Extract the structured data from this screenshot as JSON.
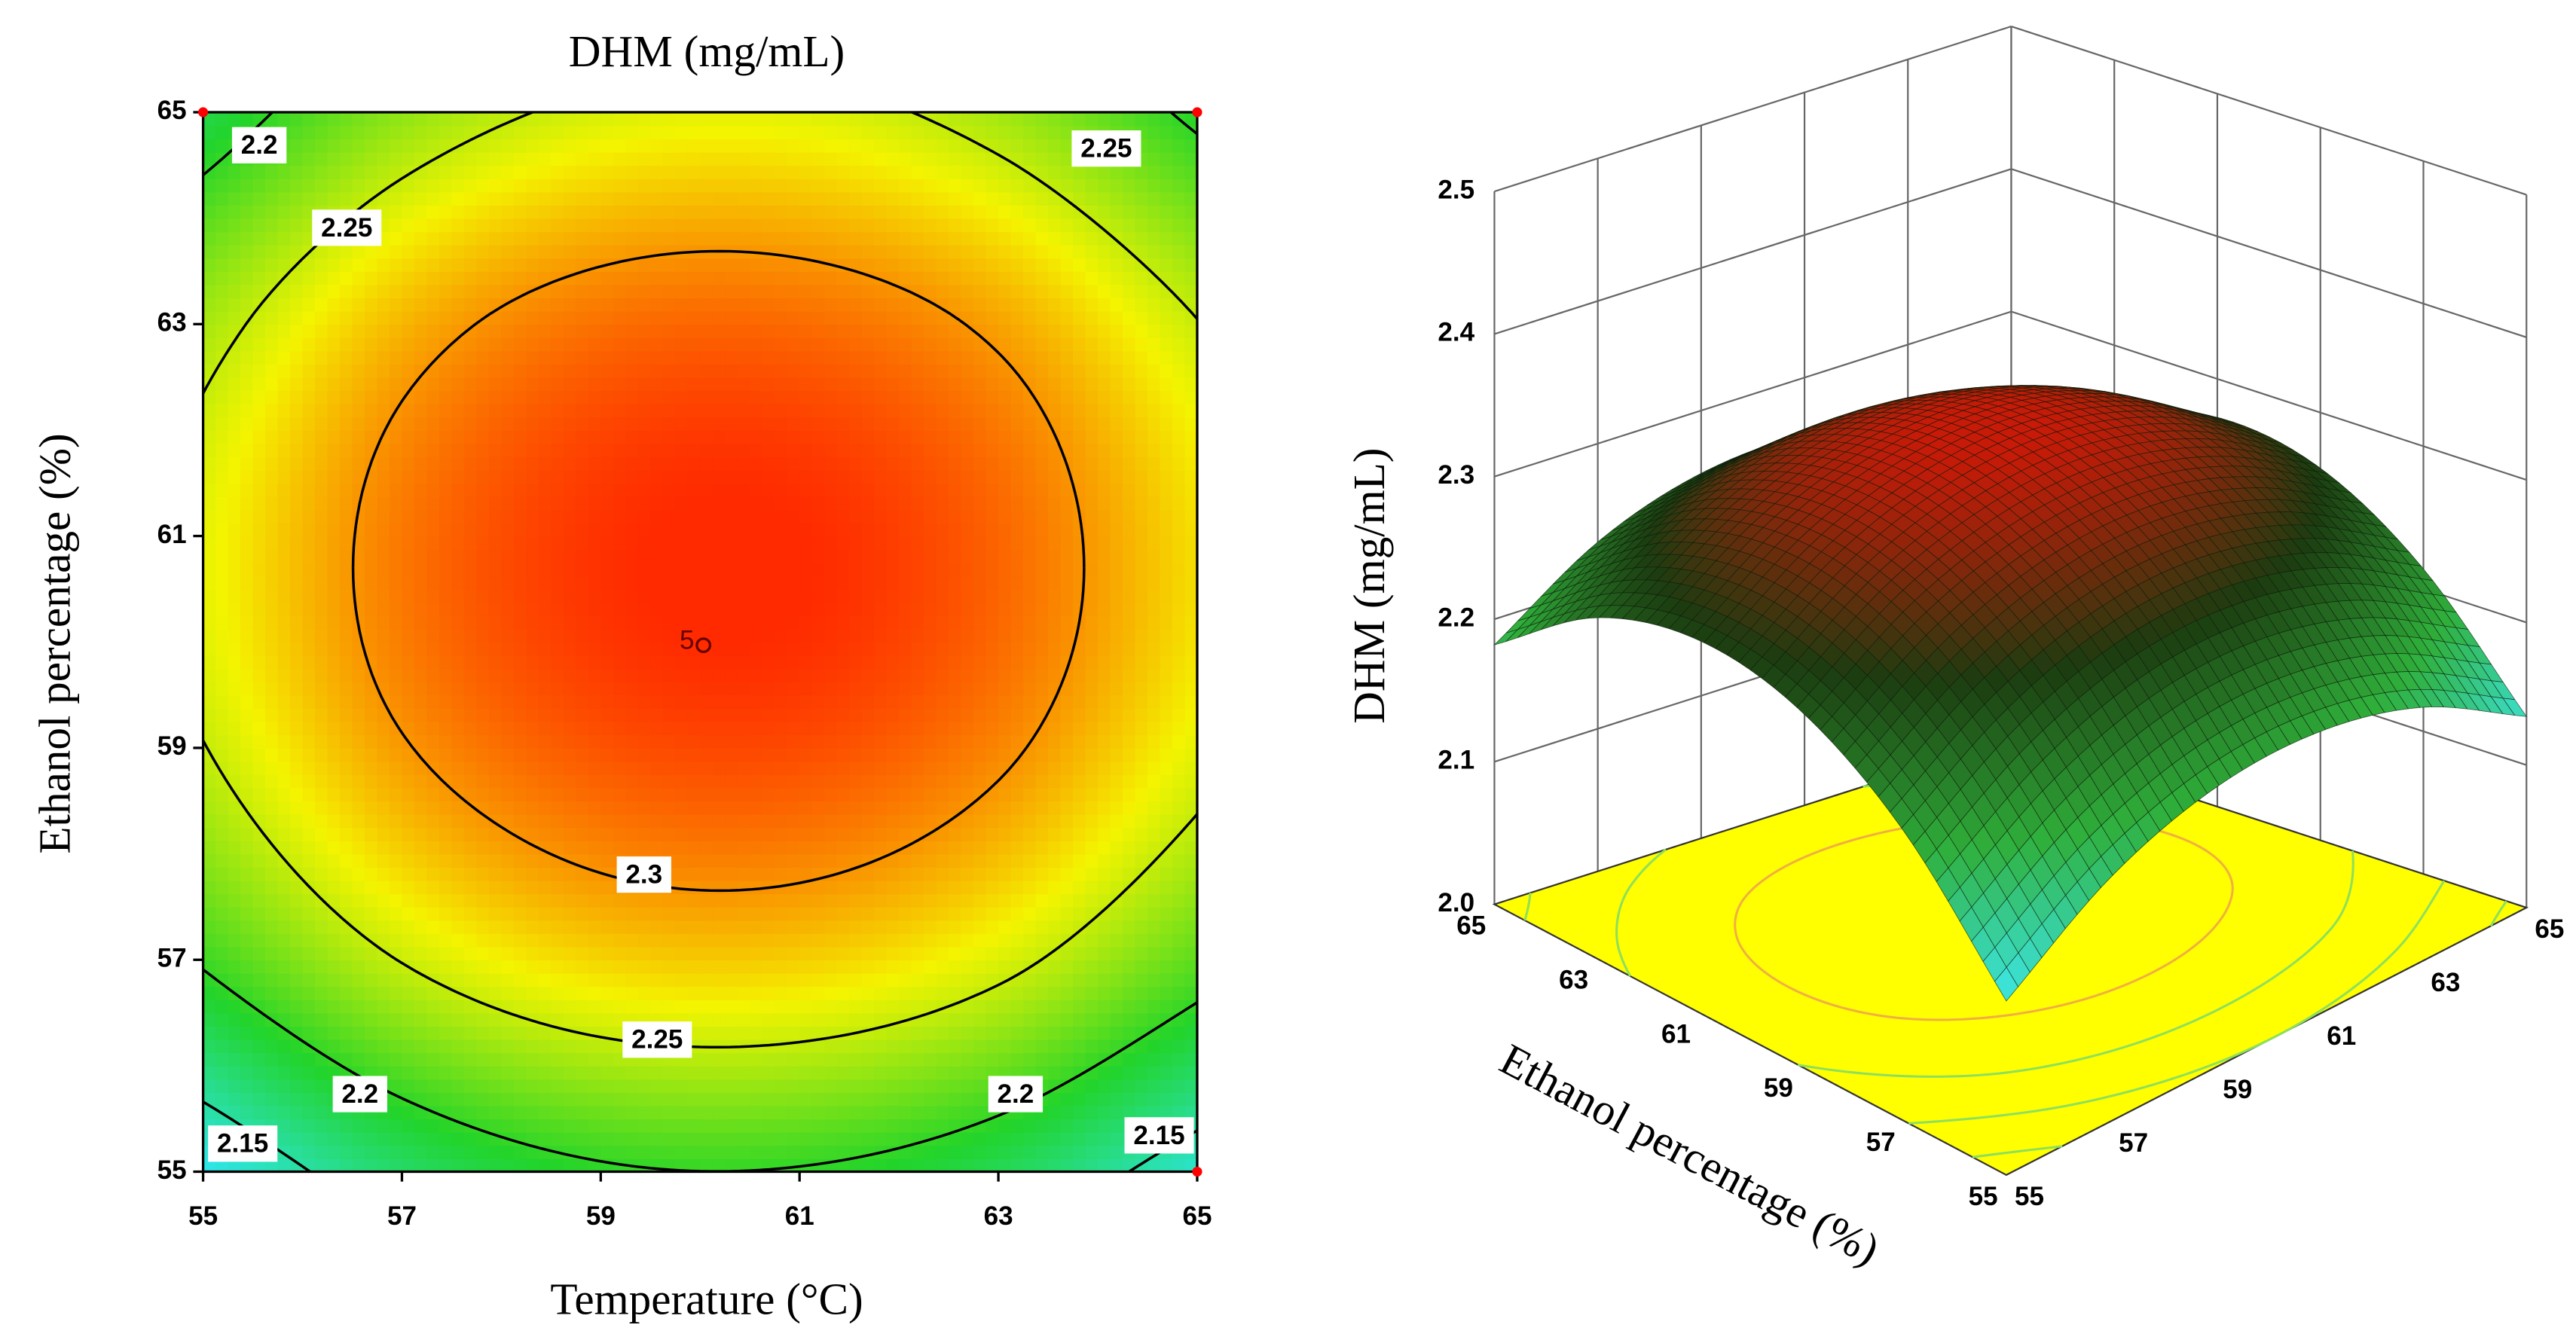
{
  "chart_data": [
    {
      "type": "contour",
      "title": "DHM (mg/mL)",
      "xlabel": "Temperature (°C)",
      "ylabel": "Ethanol percentage (%)",
      "x": [
        55,
        57,
        59,
        61,
        63,
        65
      ],
      "y": [
        55,
        57,
        59,
        61,
        63,
        65
      ],
      "z": [
        [
          2.122,
          2.171,
          2.196,
          2.198,
          2.178,
          2.134
        ],
        [
          2.203,
          2.251,
          2.277,
          2.279,
          2.258,
          2.214
        ],
        [
          2.249,
          2.298,
          2.323,
          2.326,
          2.305,
          2.261
        ],
        [
          2.261,
          2.31,
          2.335,
          2.338,
          2.317,
          2.273
        ],
        [
          2.239,
          2.288,
          2.313,
          2.315,
          2.295,
          2.251
        ],
        [
          2.182,
          2.231,
          2.256,
          2.259,
          2.238,
          2.194
        ]
      ],
      "levels": [
        2.15,
        2.2,
        2.25,
        2.3
      ],
      "xlim": [
        55,
        65
      ],
      "ylim": [
        55,
        65
      ],
      "xticks": [
        55,
        57,
        59,
        61,
        63,
        65
      ],
      "yticks": [
        55,
        57,
        59,
        61,
        63,
        65
      ],
      "colors": [
        "#2ee6f0",
        "#22d42a",
        "#f4f400",
        "#ff2a00"
      ],
      "contour_color": "#000000",
      "design_points": {
        "x": [
          55,
          65,
          65,
          60
        ],
        "y": [
          65,
          65,
          55,
          60
        ]
      },
      "center_label": "5",
      "point_color": "#ff0000"
    },
    {
      "type": "surface",
      "zlabel": "DHM (mg/mL)",
      "ylabel": "Ethanol percentage (%)",
      "x": [
        55,
        57,
        59,
        61,
        63,
        65
      ],
      "y": [
        55,
        57,
        59,
        61,
        63,
        65
      ],
      "z": [
        [
          2.122,
          2.171,
          2.196,
          2.198,
          2.178,
          2.134
        ],
        [
          2.203,
          2.251,
          2.277,
          2.279,
          2.258,
          2.214
        ],
        [
          2.249,
          2.298,
          2.323,
          2.326,
          2.305,
          2.261
        ],
        [
          2.261,
          2.31,
          2.335,
          2.338,
          2.317,
          2.273
        ],
        [
          2.239,
          2.288,
          2.313,
          2.315,
          2.295,
          2.251
        ],
        [
          2.182,
          2.231,
          2.256,
          2.259,
          2.238,
          2.194
        ]
      ],
      "levels": [
        2.15,
        2.2,
        2.25,
        2.3
      ],
      "xlim": [
        55,
        65
      ],
      "ylim": [
        55,
        65
      ],
      "zlim": [
        2.0,
        2.5
      ],
      "xticks": [
        55,
        57,
        59,
        61,
        63,
        65
      ],
      "yticks": [
        55,
        57,
        59,
        61,
        63,
        65
      ],
      "zticks": [
        {
          "value": 2.0,
          "label": "2.0"
        },
        2.1,
        2.2,
        2.3,
        2.4,
        2.5
      ],
      "colors": [
        "#3ee8e8",
        "#2fae3a",
        "#1c3c10",
        "#c81a08"
      ],
      "floor_color": "#ffff00",
      "floor_contour_color": "#8ee05a"
    }
  ]
}
